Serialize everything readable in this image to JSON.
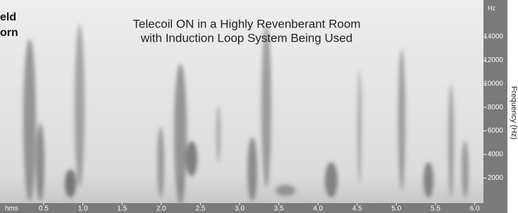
{
  "side_text": {
    "lines": [
      "eld",
      "orn"
    ]
  },
  "title": {
    "lines": [
      "Telecoil ON in a Highly Revenberant Room",
      "with Induction Loop System Being Used"
    ]
  },
  "x_axis": {
    "unit_label": "hms",
    "ticks": [
      "0.5",
      "1.0",
      "1.5",
      "2.0",
      "2.5",
      "3.0",
      "3.5",
      "4.0",
      "4.5",
      "5.0",
      "5.5",
      "6.0"
    ]
  },
  "y_axis": {
    "unit_label": "Hz",
    "ticks": [
      "14000",
      "12000",
      "10000",
      "8000",
      "6000",
      "4000",
      "2000"
    ],
    "title": "Frequency (Hz)"
  }
}
